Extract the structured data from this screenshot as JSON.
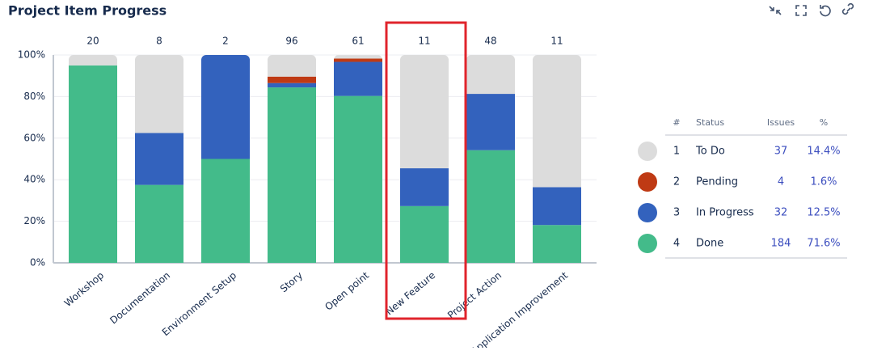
{
  "title": "Project Item Progress",
  "chart_data": {
    "type": "stacked_bar_percent",
    "categories": [
      "Workshop",
      "Documentation",
      "Environment Setup",
      "Story",
      "Open point",
      "New Feature",
      "Project Action",
      "Application Improvement"
    ],
    "totals": [
      20,
      8,
      2,
      96,
      61,
      11,
      48,
      11
    ],
    "ylim": [
      0,
      100
    ],
    "yticks": [
      {
        "value": 0,
        "label": "0%"
      },
      {
        "value": 20,
        "label": "20%"
      },
      {
        "value": 40,
        "label": "40%"
      },
      {
        "value": 60,
        "label": "60%"
      },
      {
        "value": 80,
        "label": "80%"
      },
      {
        "value": 100,
        "label": "100%"
      }
    ],
    "grid": true,
    "series": [
      {
        "name": "To Do",
        "color": "#dcdcdc",
        "rank": 1,
        "issues": 37,
        "percent": "14.4%",
        "values": [
          5,
          37.5,
          0,
          10.4,
          1.6,
          54.5,
          18.8,
          63.6
        ]
      },
      {
        "name": "Pending",
        "color": "#bf3a14",
        "rank": 2,
        "issues": 4,
        "percent": "1.6%",
        "values": [
          0,
          0,
          0,
          3.1,
          1.6,
          0,
          0,
          0
        ]
      },
      {
        "name": "In Progress",
        "color": "#3362bd",
        "rank": 3,
        "issues": 32,
        "percent": "12.5%",
        "values": [
          0,
          25,
          50,
          2.1,
          16.4,
          18.2,
          27.1,
          18.2
        ]
      },
      {
        "name": "Done",
        "color": "#43bb8a",
        "rank": 4,
        "issues": 184,
        "percent": "71.6%",
        "values": [
          95,
          37.5,
          50,
          84.4,
          80.3,
          27.3,
          54.2,
          18.2
        ]
      }
    ],
    "legend_headers": [
      "#",
      "Status",
      "Issues",
      "%"
    ]
  }
}
